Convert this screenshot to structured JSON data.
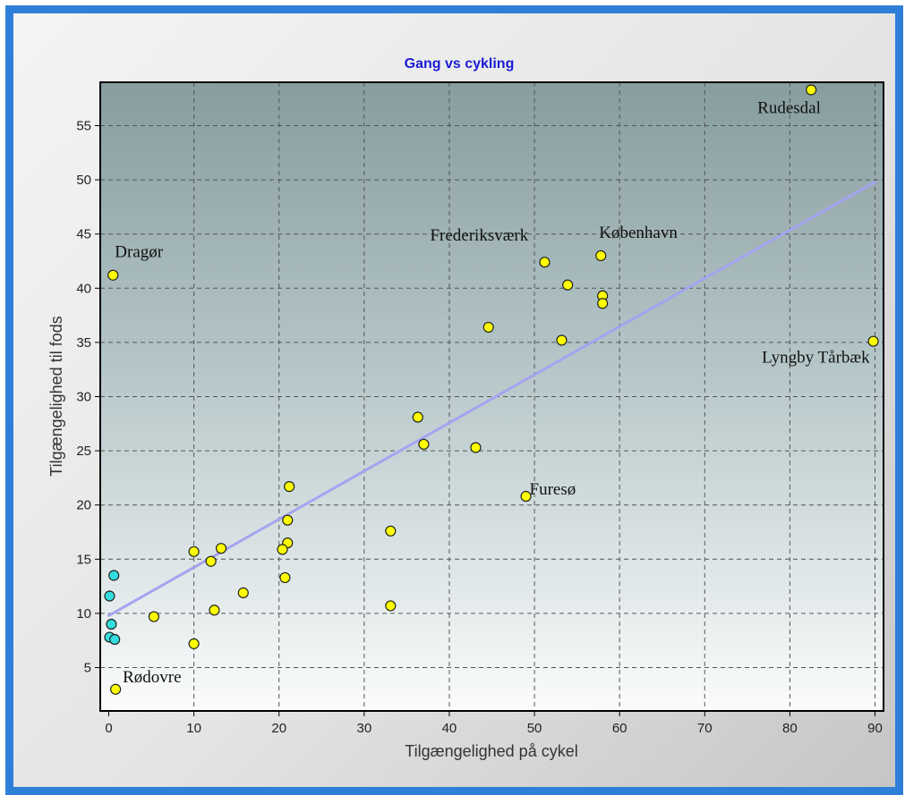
{
  "chart_data": {
    "type": "scatter",
    "title": "Gang vs cykling",
    "xlabel": "Tilgængelighed på cykel",
    "ylabel": "Tilgængelighed til fods",
    "xlim": [
      -1,
      91
    ],
    "ylim": [
      1,
      59
    ],
    "xticks": [
      0,
      10,
      20,
      30,
      40,
      50,
      60,
      70,
      80,
      90
    ],
    "yticks": [
      5,
      10,
      15,
      20,
      25,
      30,
      35,
      40,
      45,
      50,
      55
    ],
    "grid": true,
    "trendline": {
      "x": [
        0,
        90
      ],
      "y": [
        9.8,
        49.8
      ],
      "color": "#a4a4f0"
    },
    "colors": {
      "yellow_point": "#ffff00",
      "cyan_point": "#33dddd",
      "point_border": "#222222"
    },
    "series": [
      {
        "color": "#ffff00",
        "points": [
          {
            "x": 82.5,
            "y": 58.3,
            "label": "Rudesdal"
          },
          {
            "x": 0.5,
            "y": 41.2,
            "label": "Dragør"
          },
          {
            "x": 51.2,
            "y": 42.4,
            "label": "Frederiksværk"
          },
          {
            "x": 57.8,
            "y": 43.0,
            "label": "København"
          },
          {
            "x": 89.8,
            "y": 35.1,
            "label": "Lyngby Tårbæk"
          },
          {
            "x": 49.0,
            "y": 20.8,
            "label": "Furesø"
          },
          {
            "x": 0.8,
            "y": 3.0,
            "label": "Rødovre"
          },
          {
            "x": 53.9,
            "y": 40.3
          },
          {
            "x": 58.0,
            "y": 39.3
          },
          {
            "x": 58.0,
            "y": 38.6
          },
          {
            "x": 44.6,
            "y": 36.4
          },
          {
            "x": 53.2,
            "y": 35.2
          },
          {
            "x": 36.3,
            "y": 28.1
          },
          {
            "x": 37.0,
            "y": 25.6
          },
          {
            "x": 43.1,
            "y": 25.3
          },
          {
            "x": 21.2,
            "y": 21.7
          },
          {
            "x": 21.0,
            "y": 18.6
          },
          {
            "x": 33.1,
            "y": 17.6
          },
          {
            "x": 21.0,
            "y": 16.5
          },
          {
            "x": 20.4,
            "y": 15.9
          },
          {
            "x": 13.2,
            "y": 16.0
          },
          {
            "x": 10.0,
            "y": 15.7
          },
          {
            "x": 12.0,
            "y": 14.8
          },
          {
            "x": 20.7,
            "y": 13.3
          },
          {
            "x": 15.8,
            "y": 11.9
          },
          {
            "x": 33.1,
            "y": 10.7
          },
          {
            "x": 12.4,
            "y": 10.3
          },
          {
            "x": 5.3,
            "y": 9.7
          },
          {
            "x": 10.0,
            "y": 7.2
          }
        ]
      },
      {
        "color": "#33dddd",
        "points": [
          {
            "x": 0.6,
            "y": 13.5
          },
          {
            "x": 0.1,
            "y": 11.6
          },
          {
            "x": 0.3,
            "y": 9.0
          },
          {
            "x": 0.1,
            "y": 7.8
          },
          {
            "x": 0.7,
            "y": 7.6
          }
        ]
      }
    ]
  }
}
